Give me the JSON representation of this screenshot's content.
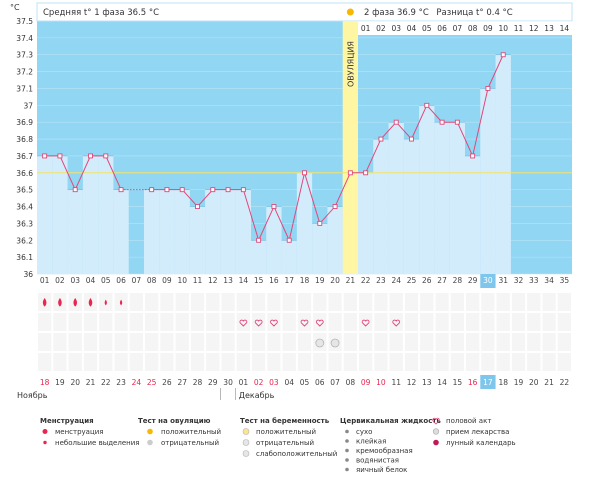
{
  "header": {
    "phase1": "Средняя t° 1 фаза 36.5 °С",
    "phase2": "2 фаза 36.9 °С",
    "diff": "Разница t° 0.4 °С",
    "ovulation": "ОВУЛЯЦИЯ"
  },
  "chart_data": {
    "type": "line",
    "ylabel": "°С",
    "ylim": [
      36,
      37.5
    ],
    "yticks": [
      "36",
      "36.1",
      "36.2",
      "36.3",
      "36.4",
      "36.5",
      "36.6",
      "36.7",
      "36.8",
      "36.9",
      "37",
      "37.1",
      "37.2",
      "37.3",
      "37.4",
      "37.5"
    ],
    "coverline": 36.6,
    "ovulation_day": 21,
    "current_day": 30,
    "luteal_days": [
      "01",
      "02",
      "03",
      "04",
      "05",
      "06",
      "07",
      "08",
      "09",
      "10",
      "11",
      "12",
      "13",
      "14"
    ],
    "cycle_days": [
      "01",
      "02",
      "03",
      "04",
      "05",
      "06",
      "07",
      "08",
      "09",
      "10",
      "11",
      "12",
      "13",
      "14",
      "15",
      "16",
      "17",
      "18",
      "19",
      "20",
      "21",
      "22",
      "23",
      "24",
      "25",
      "26",
      "27",
      "28",
      "29",
      "30",
      "31",
      "32",
      "33",
      "34",
      "35"
    ],
    "temps": [
      36.7,
      36.7,
      36.5,
      36.7,
      36.7,
      36.5,
      null,
      36.5,
      36.5,
      36.5,
      36.4,
      36.5,
      36.5,
      36.5,
      36.2,
      36.4,
      36.2,
      36.6,
      36.3,
      36.4,
      36.6,
      36.6,
      36.8,
      36.9,
      36.8,
      37.0,
      36.9,
      36.9,
      36.7,
      37.1,
      37.3
    ],
    "dates": [
      "18",
      "19",
      "20",
      "21",
      "22",
      "23",
      "24",
      "25",
      "26",
      "27",
      "28",
      "29",
      "30",
      "01",
      "02",
      "03",
      "04",
      "05",
      "06",
      "07",
      "08",
      "09",
      "10",
      "11",
      "12",
      "13",
      "14",
      "15",
      "16",
      "17",
      "18",
      "19",
      "20",
      "21",
      "22"
    ],
    "red_date_indices": [
      0,
      6,
      7,
      14,
      15,
      21,
      22,
      28,
      29,
      35
    ],
    "month_start": "Ноябрь",
    "month_next": "Декабрь",
    "menstruation_days": [
      1,
      2,
      3,
      4,
      5,
      6
    ],
    "heavy_days": [
      1,
      2,
      3,
      4
    ],
    "intercourse_days": [
      14,
      15,
      16,
      18,
      19,
      22,
      24
    ],
    "test_negative_days": [
      19,
      20
    ]
  },
  "legend": {
    "menstruation": {
      "title": "Менструация",
      "items": [
        "менструация",
        "небольшие выделения"
      ]
    },
    "ovulation_test": {
      "title": "Тест на овуляцию",
      "items": [
        "положительный",
        "отрицательный"
      ]
    },
    "pregnancy_test": {
      "title": "Тест на беременность",
      "items": [
        "положительный",
        "отрицательный",
        "слабоположительный"
      ]
    },
    "cervical": {
      "title": "Цервикальная жидкость",
      "items": [
        "сухо",
        "клейкая",
        "кремообразная",
        "водянистая",
        "яичный белок"
      ]
    },
    "other": {
      "items": [
        "половой акт",
        "прием лекарства",
        "лунный календарь"
      ]
    }
  },
  "colors": {
    "plot_bg": "#91d6f3",
    "bar": "#d3ecfb",
    "line": "#e0487a",
    "ovulation": "#fff6a3",
    "accent_red": "#e8264f",
    "current_day": "#7fc6ec"
  }
}
